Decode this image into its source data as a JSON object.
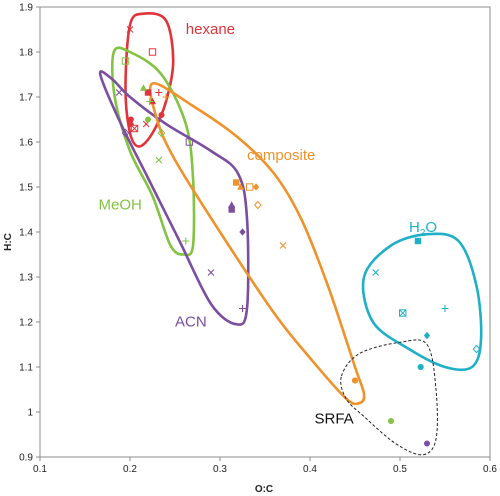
{
  "chart_data": {
    "type": "scatter",
    "title": "",
    "xlabel": "O:C",
    "ylabel": "H:C",
    "xlim": [
      0.1,
      0.6
    ],
    "ylim": [
      0.9,
      1.9
    ],
    "xticks": [
      "0.1",
      "0.2",
      "0.3",
      "0.4",
      "0.5",
      "0.6"
    ],
    "yticks": [
      "0.9",
      "1",
      "1.1",
      "1.2",
      "1.3",
      "1.4",
      "1.5",
      "1.6",
      "1.7",
      "1.8",
      "1.9"
    ],
    "grid": false,
    "series": [
      {
        "name": "hexane",
        "color": "#e0333a",
        "hull": [
          [
            0.195,
            1.72
          ],
          [
            0.2,
            1.86
          ],
          [
            0.215,
            1.885
          ],
          [
            0.24,
            1.87
          ],
          [
            0.248,
            1.78
          ],
          [
            0.24,
            1.69
          ],
          [
            0.225,
            1.62
          ],
          [
            0.21,
            1.59
          ],
          [
            0.2,
            1.62
          ]
        ],
        "points": [
          {
            "x": 0.2,
            "y": 1.85,
            "m": "x"
          },
          {
            "x": 0.225,
            "y": 1.8,
            "m": "square-open"
          },
          {
            "x": 0.22,
            "y": 1.71,
            "m": "square"
          },
          {
            "x": 0.225,
            "y": 1.69,
            "m": "triangle"
          },
          {
            "x": 0.232,
            "y": 1.71,
            "m": "plus"
          },
          {
            "x": 0.201,
            "y": 1.65,
            "m": "circle"
          },
          {
            "x": 0.201,
            "y": 1.64,
            "m": "diamond"
          },
          {
            "x": 0.205,
            "y": 1.63,
            "m": "square-cross"
          },
          {
            "x": 0.218,
            "y": 1.64,
            "m": "x"
          },
          {
            "x": 0.235,
            "y": 1.66,
            "m": "circle"
          }
        ]
      },
      {
        "name": "MeOH",
        "color": "#82c341",
        "hull": [
          [
            0.182,
            1.8
          ],
          [
            0.2,
            1.8
          ],
          [
            0.235,
            1.75
          ],
          [
            0.262,
            1.64
          ],
          [
            0.27,
            1.52
          ],
          [
            0.27,
            1.37
          ],
          [
            0.26,
            1.35
          ],
          [
            0.245,
            1.37
          ],
          [
            0.225,
            1.48
          ],
          [
            0.2,
            1.58
          ],
          [
            0.183,
            1.7
          ]
        ],
        "points": [
          {
            "x": 0.195,
            "y": 1.78,
            "m": "square-open"
          },
          {
            "x": 0.215,
            "y": 1.72,
            "m": "triangle"
          },
          {
            "x": 0.222,
            "y": 1.69,
            "m": "plus"
          },
          {
            "x": 0.22,
            "y": 1.65,
            "m": "circle"
          },
          {
            "x": 0.232,
            "y": 1.56,
            "m": "x"
          },
          {
            "x": 0.235,
            "y": 1.62,
            "m": "diamond-open"
          },
          {
            "x": 0.262,
            "y": 1.38,
            "m": "plus"
          }
        ]
      },
      {
        "name": "ACN",
        "color": "#7b4ea0",
        "hull": [
          [
            0.167,
            1.75
          ],
          [
            0.18,
            1.74
          ],
          [
            0.2,
            1.7
          ],
          [
            0.24,
            1.64
          ],
          [
            0.29,
            1.58
          ],
          [
            0.32,
            1.53
          ],
          [
            0.33,
            1.43
          ],
          [
            0.33,
            1.23
          ],
          [
            0.318,
            1.195
          ],
          [
            0.29,
            1.24
          ],
          [
            0.255,
            1.38
          ],
          [
            0.22,
            1.52
          ],
          [
            0.19,
            1.64
          ]
        ],
        "points": [
          {
            "x": 0.188,
            "y": 1.71,
            "m": "x"
          },
          {
            "x": 0.195,
            "y": 1.62,
            "m": "diamond-open"
          },
          {
            "x": 0.266,
            "y": 1.6,
            "m": "square-open"
          },
          {
            "x": 0.313,
            "y": 1.46,
            "m": "triangle"
          },
          {
            "x": 0.313,
            "y": 1.45,
            "m": "square"
          },
          {
            "x": 0.325,
            "y": 1.4,
            "m": "diamond"
          },
          {
            "x": 0.29,
            "y": 1.31,
            "m": "x"
          },
          {
            "x": 0.325,
            "y": 1.23,
            "m": "plus"
          }
        ]
      },
      {
        "name": "composite",
        "color": "#f0922b",
        "hull": [
          [
            0.225,
            1.73
          ],
          [
            0.27,
            1.68
          ],
          [
            0.32,
            1.61
          ],
          [
            0.36,
            1.53
          ],
          [
            0.39,
            1.43
          ],
          [
            0.42,
            1.28
          ],
          [
            0.45,
            1.1
          ],
          [
            0.46,
            1.04
          ],
          [
            0.455,
            1.02
          ],
          [
            0.44,
            1.03
          ],
          [
            0.4,
            1.12
          ],
          [
            0.36,
            1.22
          ],
          [
            0.3,
            1.4
          ],
          [
            0.25,
            1.56
          ],
          [
            0.23,
            1.65
          ]
        ],
        "points": [
          {
            "x": 0.24,
            "y": 1.7,
            "m": "plus"
          },
          {
            "x": 0.318,
            "y": 1.51,
            "m": "square"
          },
          {
            "x": 0.323,
            "y": 1.5,
            "m": "triangle"
          },
          {
            "x": 0.333,
            "y": 1.5,
            "m": "square-open"
          },
          {
            "x": 0.34,
            "y": 1.5,
            "m": "diamond"
          },
          {
            "x": 0.342,
            "y": 1.46,
            "m": "diamond-open"
          },
          {
            "x": 0.37,
            "y": 1.37,
            "m": "x"
          },
          {
            "x": 0.45,
            "y": 1.07,
            "m": "circle"
          }
        ]
      },
      {
        "name": "H2O",
        "color": "#1fb0c8",
        "hull": [
          [
            0.46,
            1.3
          ],
          [
            0.49,
            1.37
          ],
          [
            0.53,
            1.395
          ],
          [
            0.565,
            1.38
          ],
          [
            0.585,
            1.28
          ],
          [
            0.59,
            1.16
          ],
          [
            0.58,
            1.1
          ],
          [
            0.55,
            1.1
          ],
          [
            0.51,
            1.14
          ],
          [
            0.47,
            1.2
          ]
        ],
        "points": [
          {
            "x": 0.473,
            "y": 1.31,
            "m": "x"
          },
          {
            "x": 0.52,
            "y": 1.38,
            "m": "square"
          },
          {
            "x": 0.503,
            "y": 1.22,
            "m": "square-cross"
          },
          {
            "x": 0.55,
            "y": 1.23,
            "m": "plus"
          },
          {
            "x": 0.53,
            "y": 1.17,
            "m": "diamond"
          },
          {
            "x": 0.585,
            "y": 1.14,
            "m": "diamond-open"
          },
          {
            "x": 0.523,
            "y": 1.1,
            "m": "circle"
          }
        ]
      },
      {
        "name": "SRFA",
        "color": "#222222",
        "hull": [
          [
            0.435,
            1.08
          ],
          [
            0.455,
            1.13
          ],
          [
            0.5,
            1.155
          ],
          [
            0.53,
            1.15
          ],
          [
            0.54,
            1.05
          ],
          [
            0.54,
            0.94
          ],
          [
            0.525,
            0.905
          ],
          [
            0.495,
            0.93
          ],
          [
            0.46,
            0.99
          ],
          [
            0.44,
            1.03
          ]
        ],
        "points": [
          {
            "x": 0.45,
            "y": 1.07,
            "m": "circle",
            "color": "#f0922b"
          },
          {
            "x": 0.523,
            "y": 1.1,
            "m": "circle",
            "color": "#1fb0c8"
          },
          {
            "x": 0.49,
            "y": 0.98,
            "m": "circle",
            "color": "#82c341"
          },
          {
            "x": 0.53,
            "y": 0.93,
            "m": "circle",
            "color": "#7b4ea0"
          }
        ]
      }
    ],
    "labels": [
      {
        "series": "hexane",
        "text": "hexane",
        "x": 0.262,
        "y": 1.84,
        "color": "#e0333a"
      },
      {
        "series": "MeOH",
        "text": "MeOH",
        "x": 0.165,
        "y": 1.45,
        "color": "#82c341"
      },
      {
        "series": "ACN",
        "text": "ACN",
        "x": 0.25,
        "y": 1.19,
        "color": "#7b4ea0"
      },
      {
        "series": "composite",
        "text": "composite",
        "x": 0.33,
        "y": 1.56,
        "color": "#f0922b"
      },
      {
        "series": "H2O",
        "text": "H",
        "sub": "2",
        "rest": "O",
        "x": 0.51,
        "y": 1.4,
        "color": "#1fb0c8"
      },
      {
        "series": "SRFA",
        "text": "SRFA",
        "x": 0.405,
        "y": 0.975,
        "color": "#111111"
      }
    ]
  }
}
